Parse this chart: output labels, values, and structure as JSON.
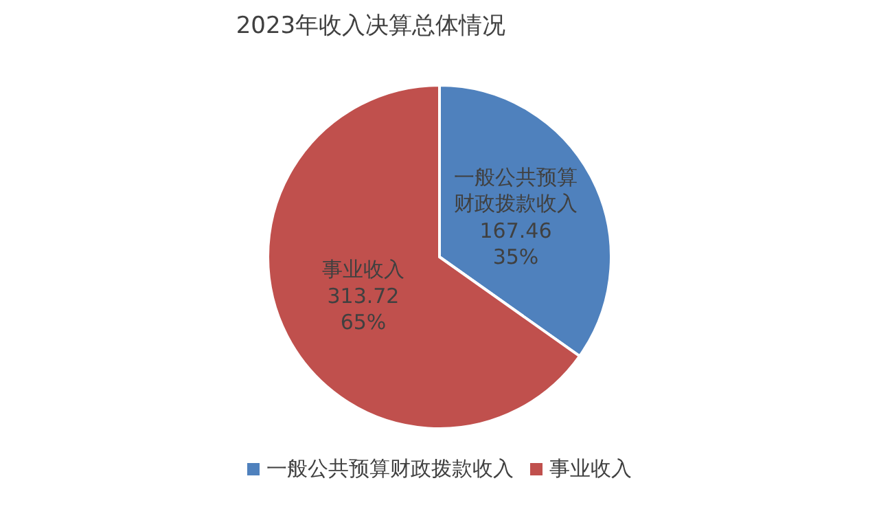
{
  "chart_data": {
    "type": "pie",
    "title": "2023年收入决算总体情况",
    "categories": [
      "一般公共预算财政拨款收入",
      "事业收入"
    ],
    "values": [
      167.46,
      313.72
    ],
    "colors": [
      "#4f81bd",
      "#c0504d"
    ],
    "value_labels": [
      "167.46\n35%",
      "313.72\n65%"
    ],
    "legend": "bottom"
  }
}
